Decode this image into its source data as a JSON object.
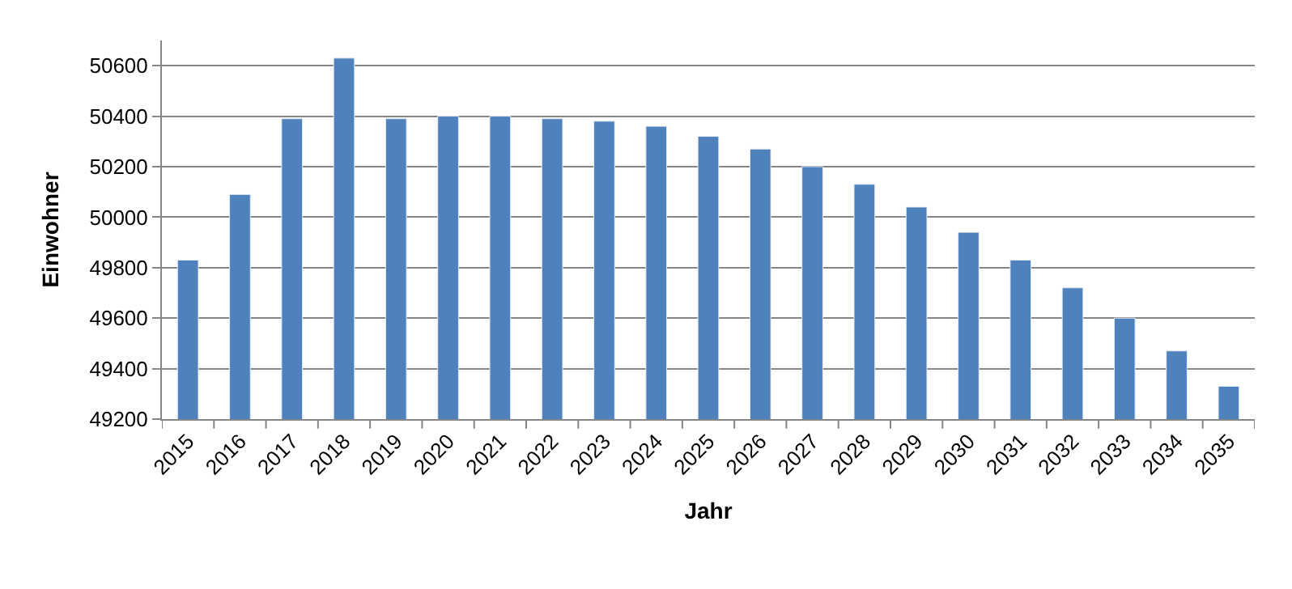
{
  "chart_data": {
    "type": "bar",
    "xlabel": "Jahr",
    "ylabel": "Einwohner",
    "categories": [
      "2015",
      "2016",
      "2017",
      "2018",
      "2019",
      "2020",
      "2021",
      "2022",
      "2023",
      "2024",
      "2025",
      "2026",
      "2027",
      "2028",
      "2029",
      "2030",
      "2031",
      "2032",
      "2033",
      "2034",
      "2035"
    ],
    "values": [
      49830,
      50090,
      50390,
      50630,
      50390,
      50400,
      50400,
      50390,
      50380,
      50360,
      50320,
      50270,
      50200,
      50130,
      50040,
      49940,
      49830,
      49720,
      49600,
      49470,
      49330
    ],
    "color": "#4f81bd",
    "ylim": [
      49200,
      50700
    ],
    "yticks": [
      49200,
      49400,
      49600,
      49800,
      50000,
      50200,
      50400,
      50600
    ],
    "grid": "y"
  }
}
